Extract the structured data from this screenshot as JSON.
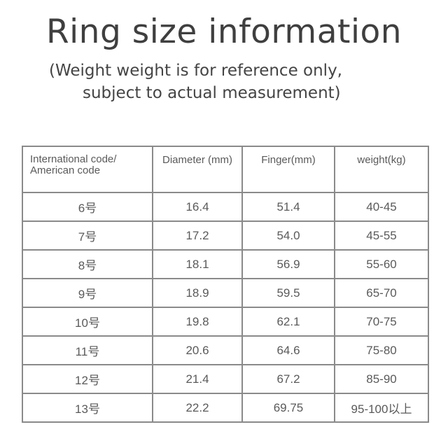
{
  "title": "Ring size information",
  "subtitle_line1": "(Weight weight is for reference only,",
  "subtitle_line2": "subject to actual measurement)",
  "table": {
    "headers": [
      "International code/ American code",
      "Diameter (mm)",
      "Finger(mm)",
      "weight(kg)"
    ],
    "rows": [
      [
        "6号",
        "16.4",
        "51.4",
        "40-45"
      ],
      [
        "7号",
        "17.2",
        "54.0",
        "45-55"
      ],
      [
        "8号",
        "18.1",
        "56.9",
        "55-60"
      ],
      [
        "9号",
        "18.9",
        "59.5",
        "65-70"
      ],
      [
        "10号",
        "19.8",
        "62.1",
        "70-75"
      ],
      [
        "11号",
        "20.6",
        "64.6",
        "75-80"
      ],
      [
        "12号",
        "21.4",
        "67.2",
        "85-90"
      ],
      [
        "13号",
        "22.2",
        "69.75",
        "95-100以上"
      ]
    ]
  }
}
